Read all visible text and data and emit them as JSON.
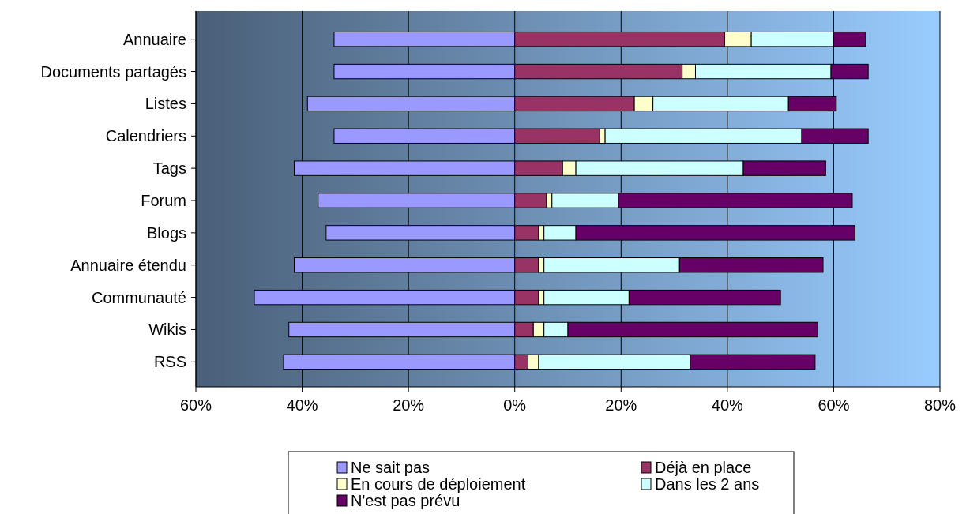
{
  "chart_data": {
    "type": "bar",
    "orientation": "horizontal",
    "stacked": true,
    "categories": [
      "Annuaire",
      "Documents partagés",
      "Listes",
      "Calendriers",
      "Tags",
      "Forum",
      "Blogs",
      "Annuaire étendu",
      "Communauté",
      "Wikis",
      "RSS"
    ],
    "series": [
      {
        "name": "Ne sait pas",
        "color": "#9999ff",
        "values": [
          -34,
          -34,
          -39,
          -34,
          -41.5,
          -37,
          -35.5,
          -41.5,
          -49,
          -42.5,
          -43.5
        ]
      },
      {
        "name": "Déjà en place",
        "color": "#993366",
        "values": [
          39.5,
          31.5,
          22.5,
          16,
          9,
          6,
          4.5,
          4.5,
          4.5,
          3.5,
          2.5
        ]
      },
      {
        "name": "En cours de déploiement",
        "color": "#ffffcc",
        "values": [
          5,
          2.5,
          3.5,
          1,
          2.5,
          1,
          1,
          1,
          1,
          2,
          2
        ]
      },
      {
        "name": "Dans les 2 ans",
        "color": "#ccffff",
        "values": [
          15.5,
          25.5,
          25.5,
          37,
          31.5,
          12.5,
          6,
          25.5,
          16,
          4.5,
          28.5
        ]
      },
      {
        "name": "N'est pas prévu",
        "color": "#660066",
        "values": [
          6,
          7,
          9,
          12.5,
          15.5,
          44,
          52.5,
          27,
          28.5,
          47,
          23.5
        ]
      }
    ],
    "xlim": [
      -60,
      80
    ],
    "xticks": [
      {
        "value": -60,
        "label": "60%"
      },
      {
        "value": -40,
        "label": "40%"
      },
      {
        "value": -20,
        "label": "20%"
      },
      {
        "value": 0,
        "label": "0%"
      },
      {
        "value": 20,
        "label": "20%"
      },
      {
        "value": 40,
        "label": "40%"
      },
      {
        "value": 60,
        "label": "60%"
      },
      {
        "value": 80,
        "label": "80%"
      }
    ],
    "grid": "x",
    "legend": "bottom"
  }
}
